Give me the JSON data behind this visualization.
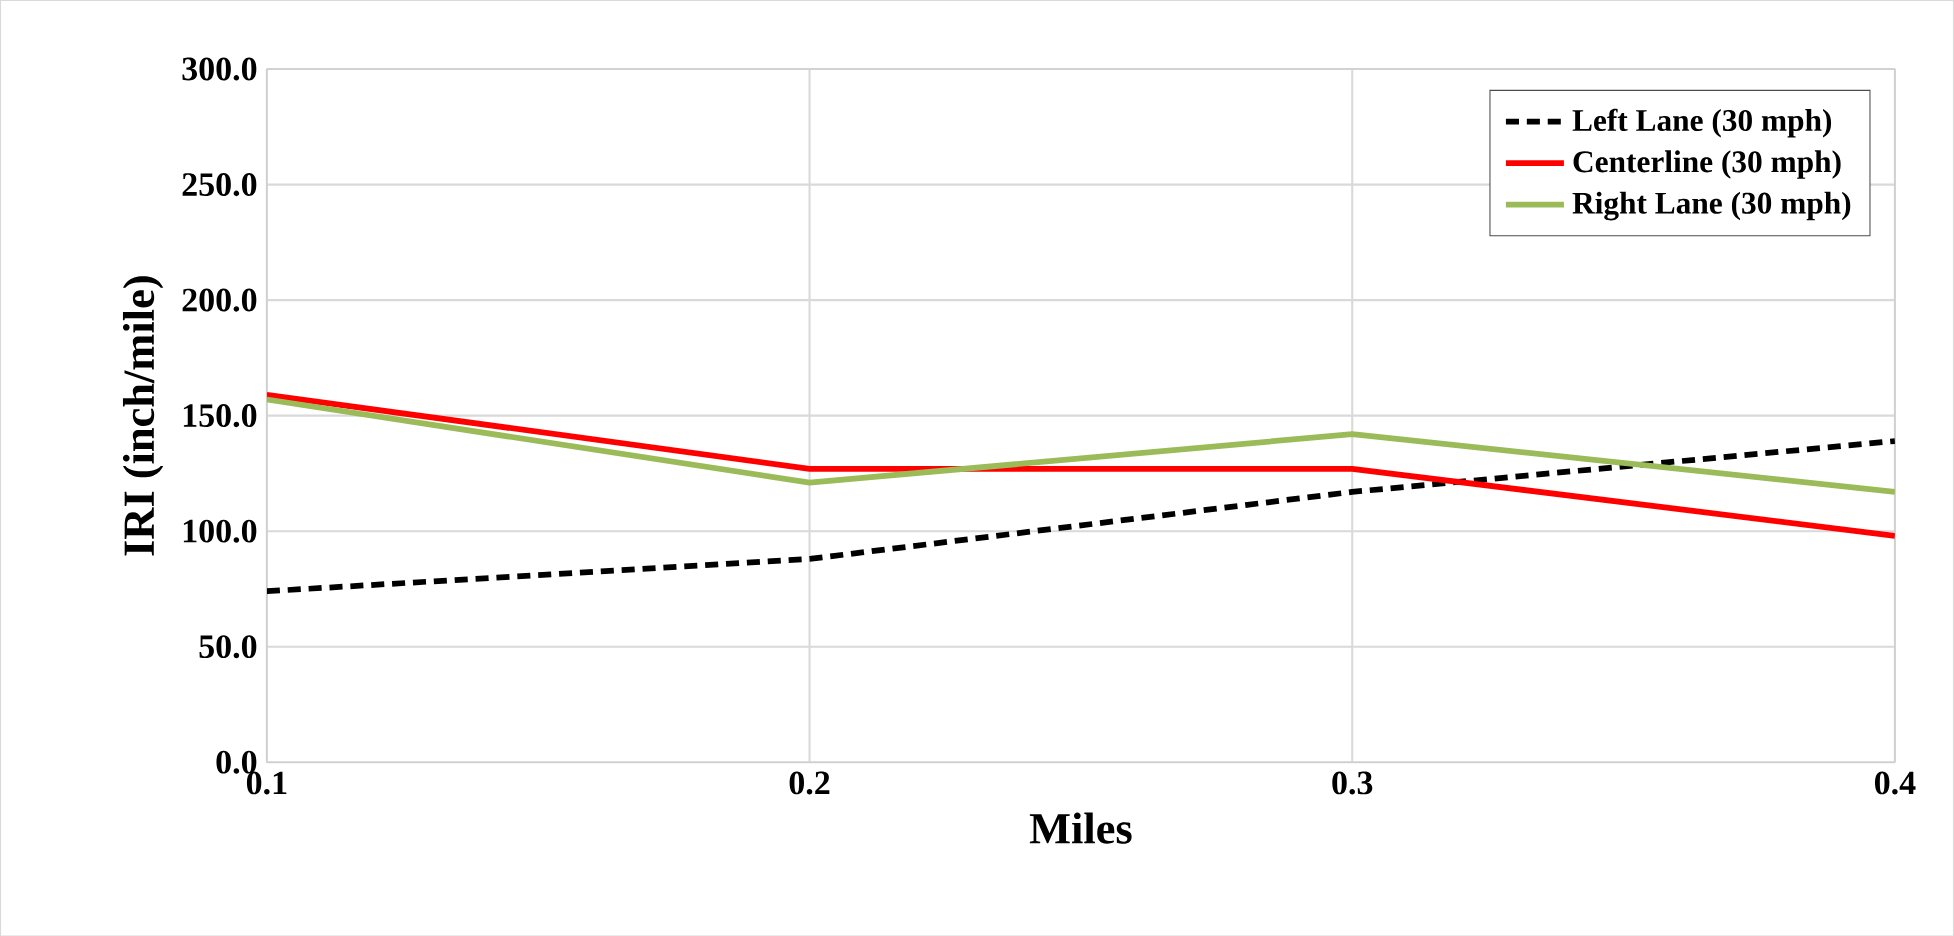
{
  "chart_data": {
    "type": "line",
    "xlabel": "Miles",
    "ylabel": "IRI (inch/mile)",
    "x": [
      0.1,
      0.2,
      0.3,
      0.4
    ],
    "xlim": [
      0.1,
      0.4
    ],
    "xticks": [
      {
        "value": 0.1,
        "label": "0.1"
      },
      {
        "value": 0.2,
        "label": "0.2"
      },
      {
        "value": 0.3,
        "label": "0.3"
      },
      {
        "value": 0.4,
        "label": "0.4"
      }
    ],
    "ylim": [
      0,
      300
    ],
    "yticks": [
      {
        "value": 0,
        "label": "0.0"
      },
      {
        "value": 50,
        "label": "50.0"
      },
      {
        "value": 100,
        "label": "100.0"
      },
      {
        "value": 150,
        "label": "150.0"
      },
      {
        "value": 200,
        "label": "200.0"
      },
      {
        "value": 250,
        "label": "250.0"
      },
      {
        "value": 300,
        "label": "300.0"
      }
    ],
    "grid": true,
    "legend": "top right",
    "marker": "none",
    "series": [
      {
        "name": "Left Lane (30 mph)",
        "color": "#000000",
        "line_style": "dashed",
        "values": [
          74,
          88,
          117,
          139
        ]
      },
      {
        "name": "Centerline (30 mph)",
        "color": "#ff0000",
        "line_style": "solid",
        "values": [
          159,
          127,
          127,
          98
        ]
      },
      {
        "name": "Right Lane (30 mph)",
        "color": "#9bbb59",
        "line_style": "solid",
        "values": [
          157,
          121,
          142,
          117
        ]
      }
    ]
  }
}
